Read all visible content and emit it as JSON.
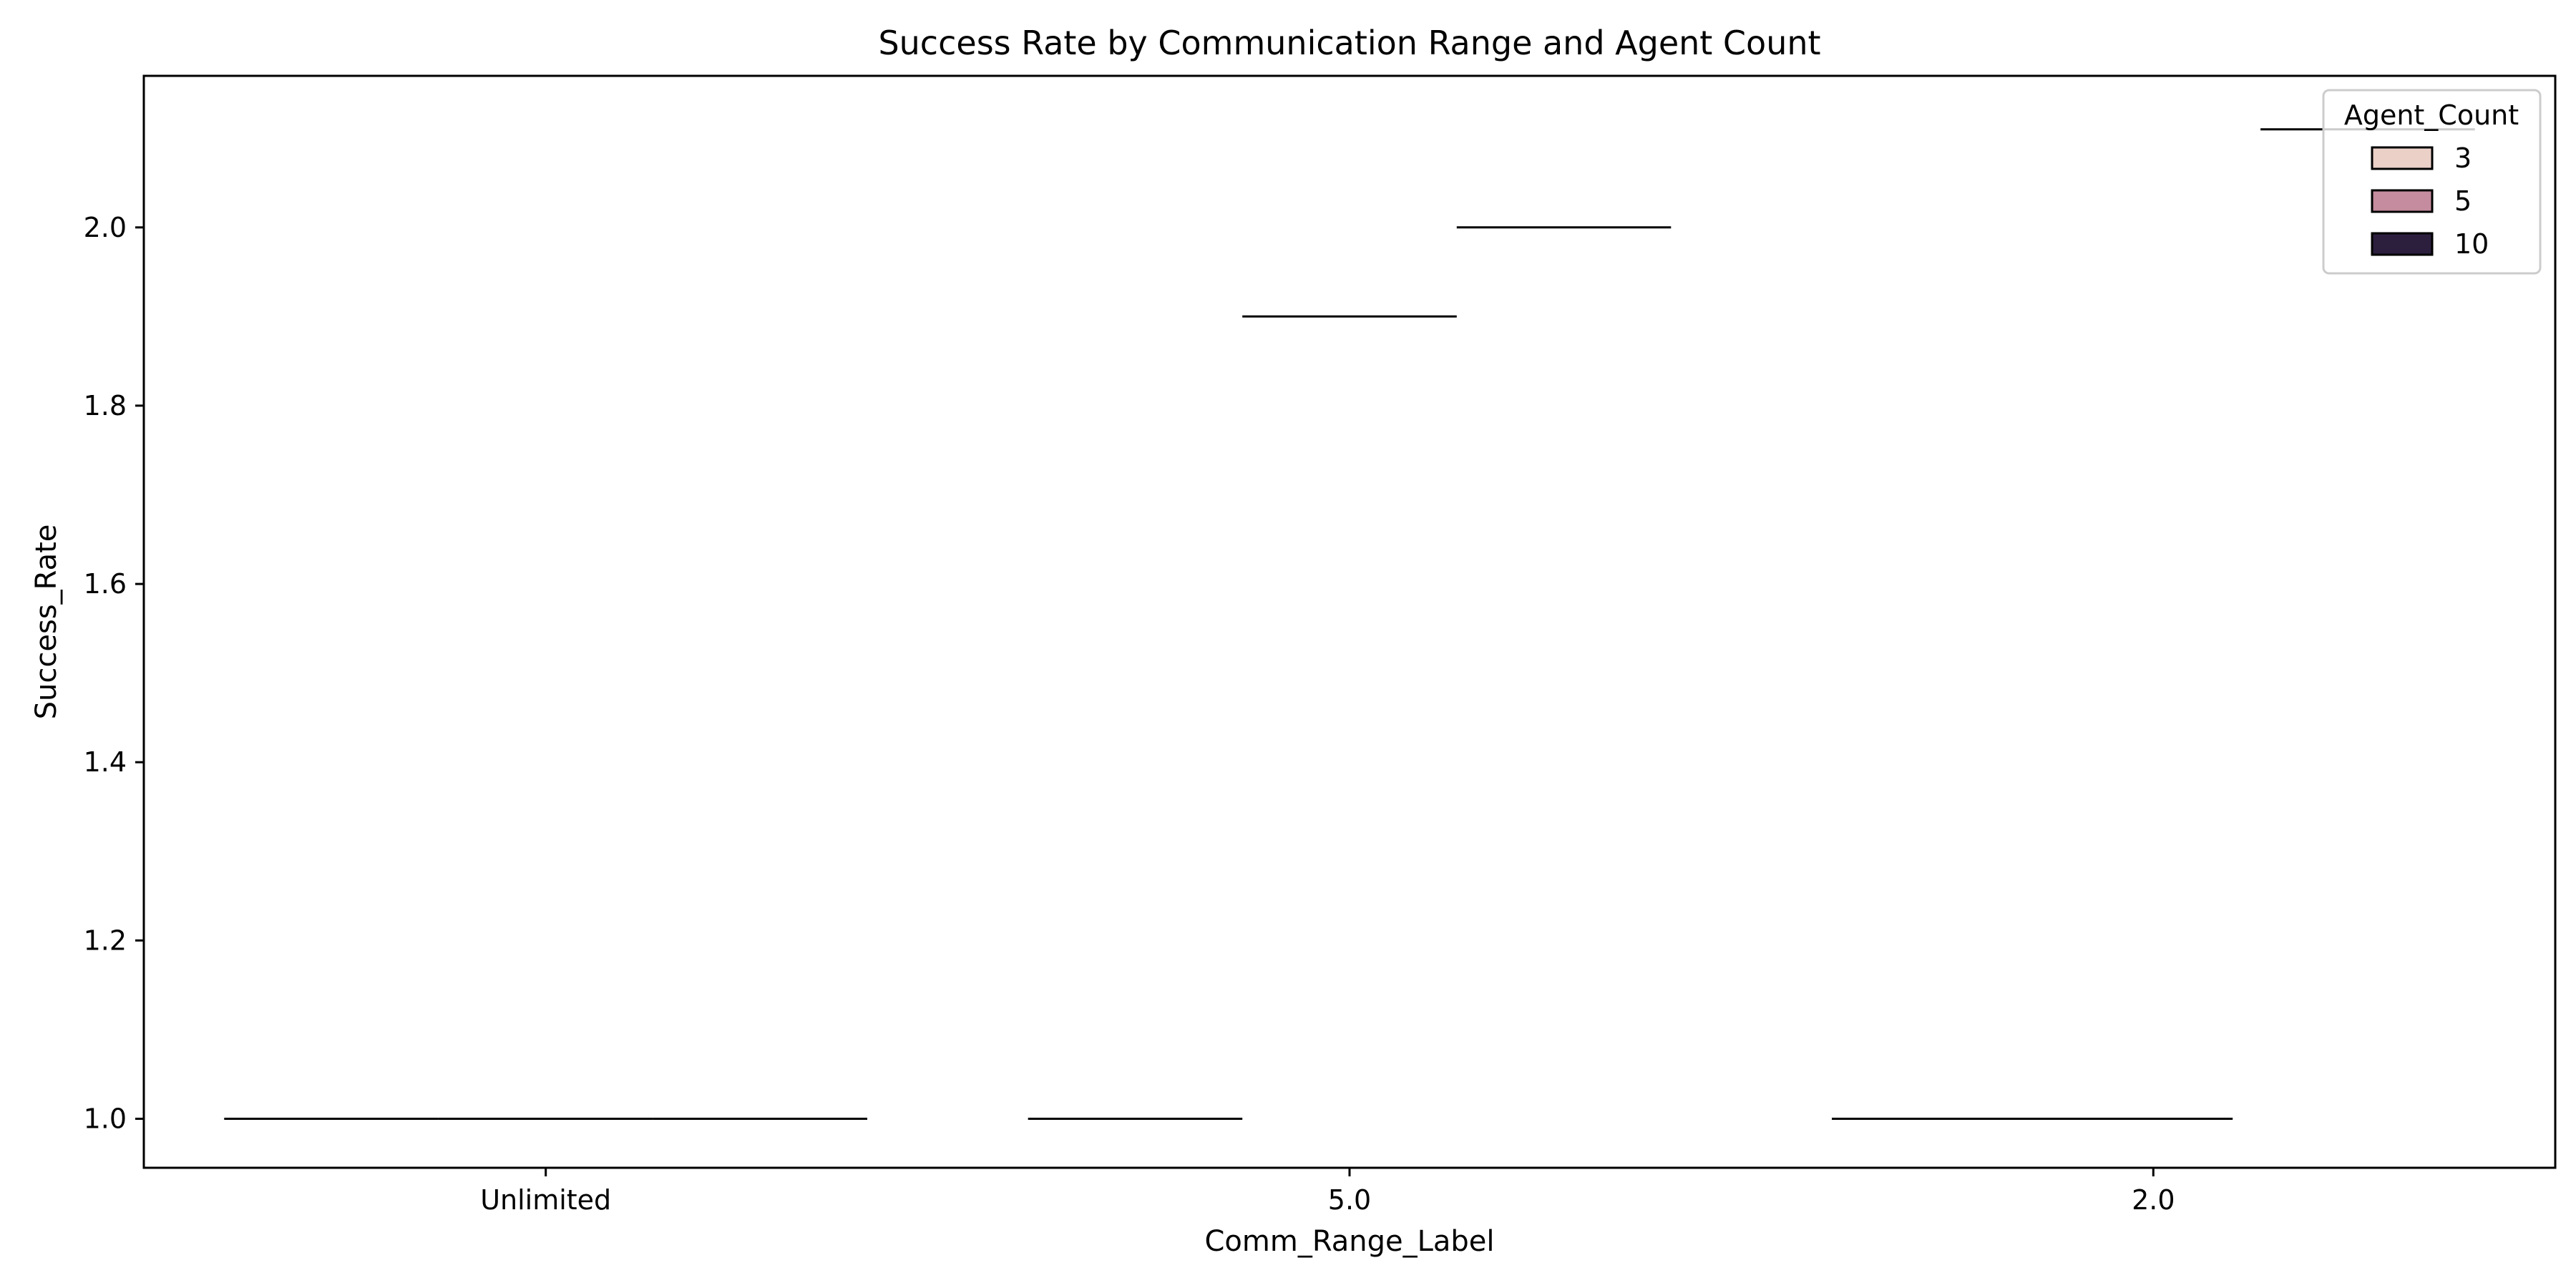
{
  "chart_data": {
    "type": "violin",
    "title": "Success Rate by Communication Range and Agent Count",
    "xlabel": "Comm_Range_Label",
    "ylabel": "Success_Rate",
    "categories": [
      "Unlimited",
      "5.0",
      "2.0"
    ],
    "ylim": [
      0.945,
      2.17
    ],
    "yticks": [
      1.0,
      1.2,
      1.4,
      1.6,
      1.8,
      2.0
    ],
    "ytick_labels": [
      "1.0",
      "1.2",
      "1.4",
      "1.6",
      "1.8",
      "2.0"
    ],
    "grid": false,
    "legend": {
      "title": "Agent_Count",
      "placement": "top-right",
      "entries": [
        {
          "label": "3",
          "color": "#ebd0c8"
        },
        {
          "label": "5",
          "color": "#c48c9e"
        },
        {
          "label": "10",
          "color": "#2c1e3d"
        }
      ]
    },
    "series": [
      {
        "name": "3",
        "values": [
          1.0,
          1.0,
          1.0
        ]
      },
      {
        "name": "5",
        "values": [
          1.0,
          1.9,
          null
        ]
      },
      {
        "name": "10",
        "values": [
          1.0,
          2.0,
          2.11
        ]
      }
    ],
    "extra_marks": [
      {
        "category": "2.0",
        "value": 1.0
      }
    ]
  }
}
